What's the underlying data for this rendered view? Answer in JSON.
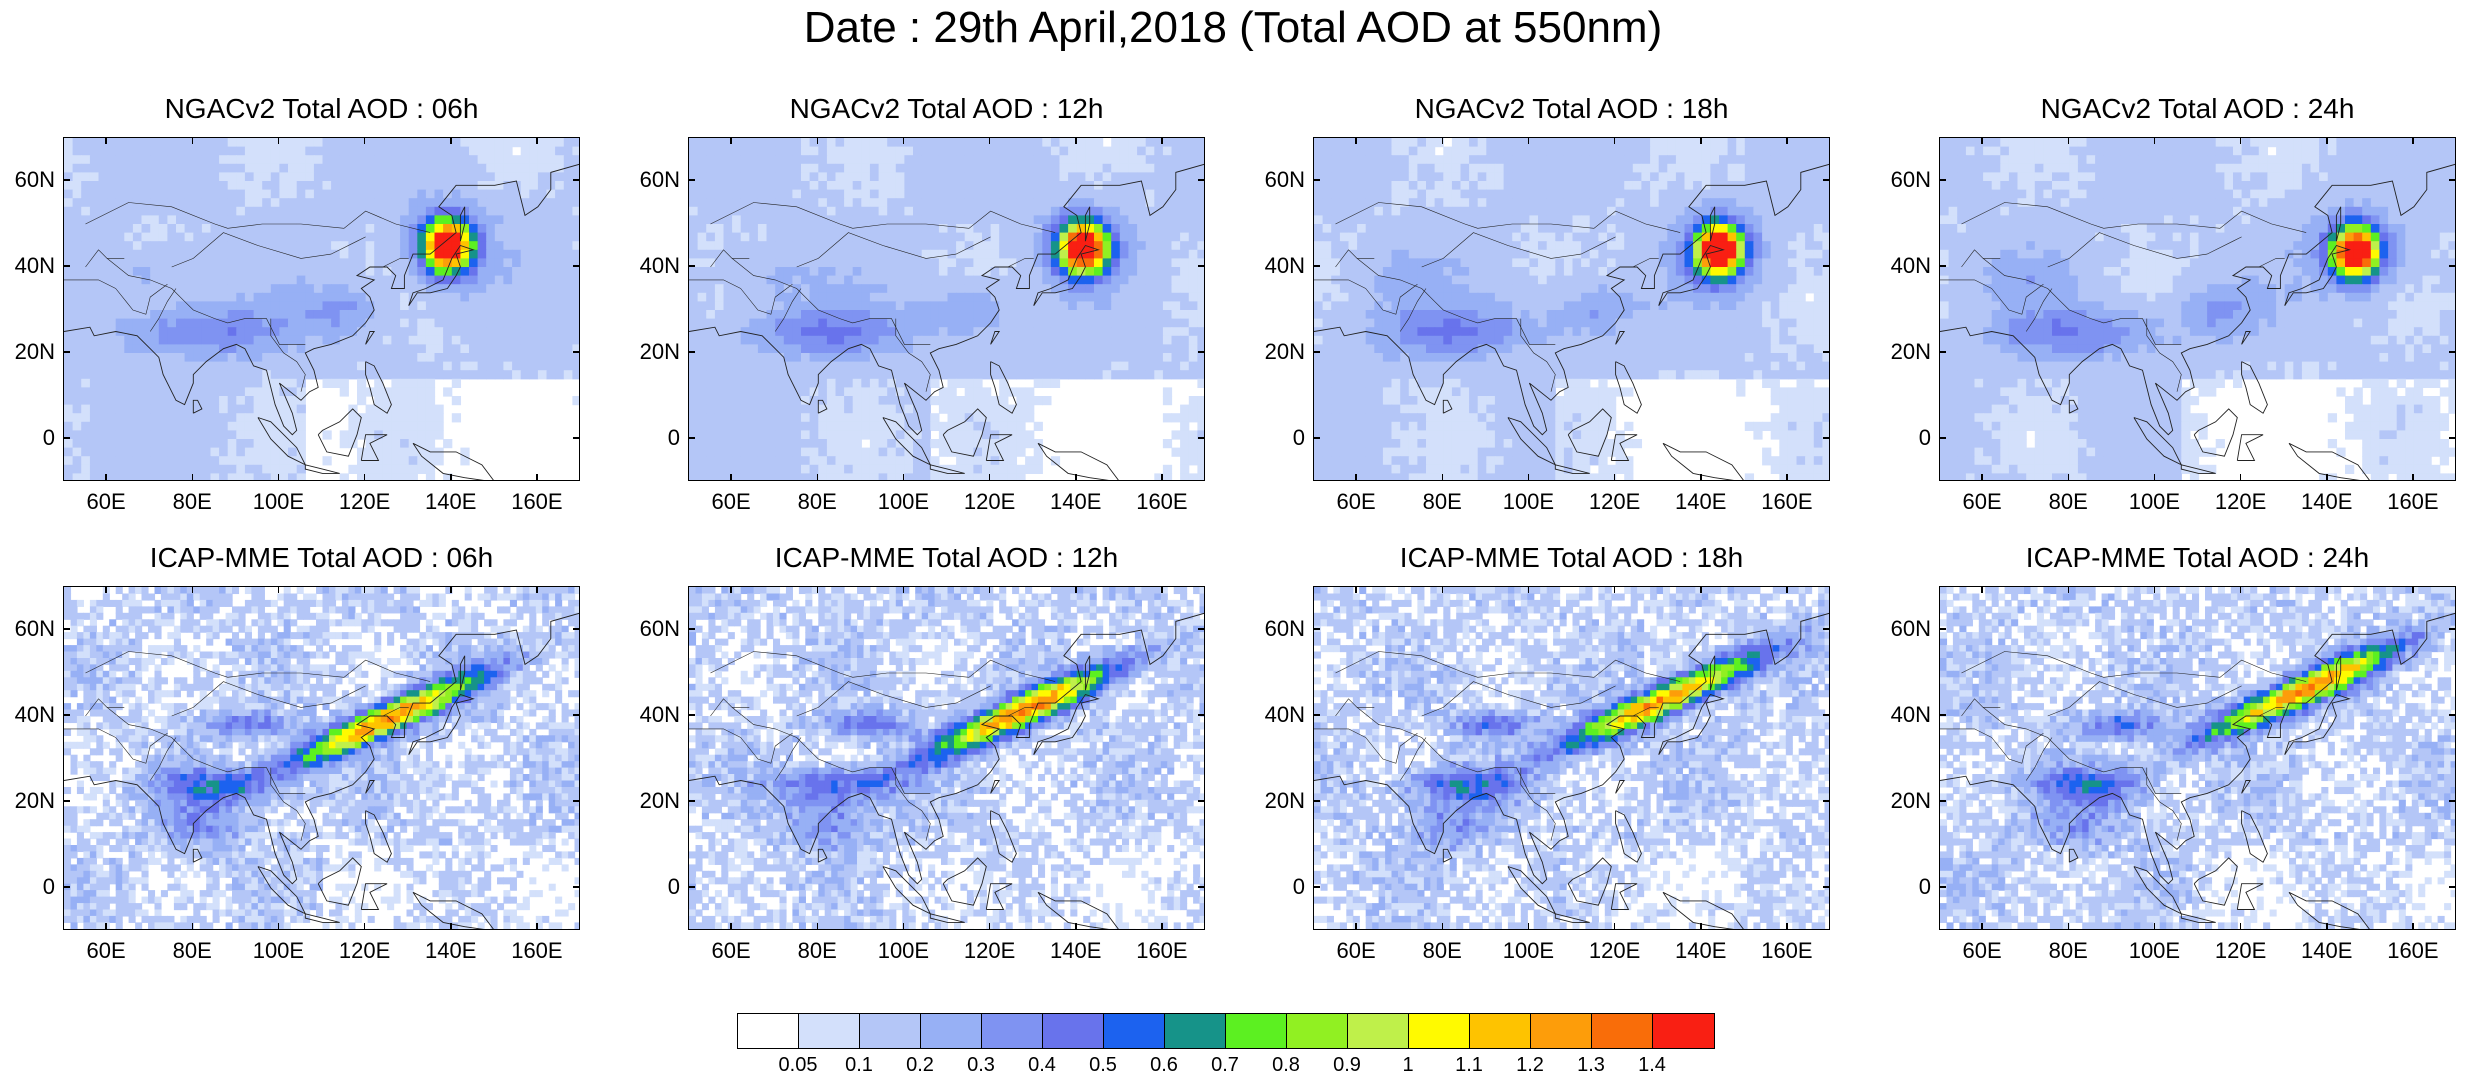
{
  "title": "Date : 29th April,2018 (Total AOD at 550nm)",
  "panels": [
    {
      "title": "NGACv2 Total AOD : 06h",
      "model": "ngac"
    },
    {
      "title": "NGACv2 Total AOD : 12h",
      "model": "ngac"
    },
    {
      "title": "NGACv2 Total AOD : 18h",
      "model": "ngac"
    },
    {
      "title": "NGACv2 Total AOD : 24h",
      "model": "ngac"
    },
    {
      "title": "ICAP-MME Total AOD : 06h",
      "model": "icap"
    },
    {
      "title": "ICAP-MME Total AOD : 12h",
      "model": "icap"
    },
    {
      "title": "ICAP-MME Total AOD : 18h",
      "model": "icap"
    },
    {
      "title": "ICAP-MME Total AOD : 24h",
      "model": "icap"
    }
  ],
  "axes": {
    "lat_ticks": [
      "60N",
      "40N",
      "20N",
      "0"
    ],
    "lat_values": [
      60,
      40,
      20,
      0
    ],
    "lon_ticks": [
      "60E",
      "80E",
      "100E",
      "120E",
      "140E",
      "160E"
    ],
    "lon_values": [
      60,
      80,
      100,
      120,
      140,
      160
    ],
    "lat_range": [
      -10,
      70
    ],
    "lon_range": [
      50,
      170
    ]
  },
  "colorbar": {
    "labels": [
      "0.05",
      "0.1",
      "0.2",
      "0.3",
      "0.4",
      "0.5",
      "0.6",
      "0.7",
      "0.8",
      "0.9",
      "1",
      "1.1",
      "1.2",
      "1.3",
      "1.4"
    ],
    "colors": [
      "#ffffff",
      "#d3e0fb",
      "#b4c6f7",
      "#97b0f5",
      "#7f93f2",
      "#6873ec",
      "#1c62ef",
      "#169389",
      "#5cf021",
      "#91f022",
      "#bff04a",
      "#fffa00",
      "#fec300",
      "#fd9d0a",
      "#f96d09",
      "#f91f13"
    ]
  }
}
